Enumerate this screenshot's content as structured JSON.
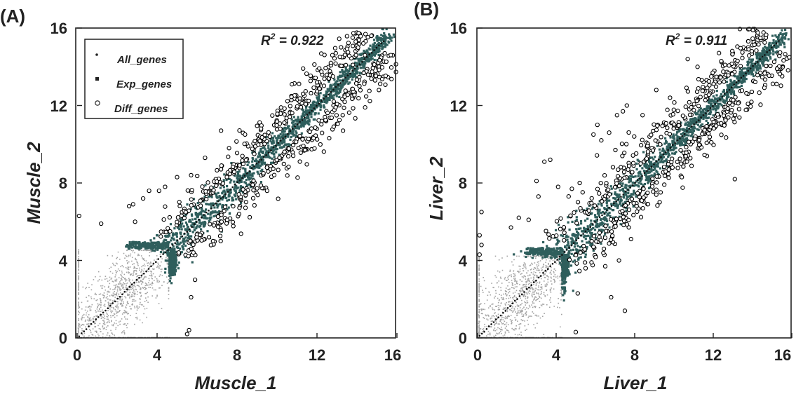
{
  "chart_data": [
    {
      "panel_label": "(A)",
      "type": "scatter",
      "xlabel": "Muscle_1",
      "ylabel": "Muscle_2",
      "xlim": [
        0,
        16
      ],
      "ylim": [
        0,
        16
      ],
      "xticks": [
        "0",
        "4",
        "8",
        "12",
        "16"
      ],
      "yticks": [
        "0",
        "4",
        "8",
        "12",
        "16"
      ],
      "annotation": {
        "prefix": "R",
        "superscript": "2",
        "suffix": " = 0.922",
        "r2": 0.922
      },
      "legend": {
        "position": "top-left",
        "entries": [
          "All_genes",
          "Exp_genes",
          "Diff_genes"
        ]
      },
      "threshold": 4.6,
      "series": [
        {
          "name": "All_genes",
          "marker": "small-dot",
          "color": "#a4a4a4"
        },
        {
          "name": "Exp_genes",
          "marker": "filled-square",
          "color": "#2f5e5c"
        },
        {
          "name": "Diff_genes",
          "marker": "open-circle",
          "color": "#000000",
          "points": [
            [
              2.6,
              6.8
            ],
            [
              2.8,
              6.9
            ],
            [
              3.3,
              7.2
            ],
            [
              3.6,
              7.6
            ],
            [
              4.1,
              7.6
            ],
            [
              4.4,
              7.8
            ],
            [
              5.0,
              8.3
            ],
            [
              5.7,
              8.4
            ],
            [
              6.4,
              9.3
            ],
            [
              7.2,
              10.7
            ],
            [
              7.6,
              9.8
            ],
            [
              8.4,
              10.5
            ],
            [
              9.2,
              10.8
            ],
            [
              10.2,
              11.9
            ],
            [
              11.3,
              12.6
            ],
            [
              12.8,
              13.5
            ],
            [
              14.4,
              14.6
            ],
            [
              15.1,
              12.8
            ],
            [
              13.3,
              10.7
            ],
            [
              11.4,
              9.7
            ],
            [
              9.5,
              7.6
            ],
            [
              8.1,
              6.4
            ],
            [
              7.5,
              6.1
            ],
            [
              6.8,
              5.0
            ],
            [
              5.9,
              3.0
            ],
            [
              5.7,
              2.1
            ],
            [
              5.6,
              0.4
            ],
            [
              5.5,
              0.2
            ],
            [
              2.9,
              6.0
            ],
            [
              0.1,
              6.3
            ],
            [
              1.2,
              5.9
            ],
            [
              12.0,
              13.2
            ],
            [
              13.8,
              14.1
            ]
          ]
        }
      ]
    },
    {
      "panel_label": "(B)",
      "type": "scatter",
      "xlabel": "Liver_1",
      "ylabel": "Liver_2",
      "xlim": [
        0,
        16
      ],
      "ylim": [
        0,
        16
      ],
      "xticks": [
        "0",
        "4",
        "8",
        "12",
        "16"
      ],
      "yticks": [
        "0",
        "4",
        "8",
        "12",
        "16"
      ],
      "annotation": {
        "prefix": "R",
        "superscript": "2",
        "suffix": " = 0.911",
        "r2": 0.911
      },
      "legend": null,
      "threshold": 4.3,
      "series": [
        {
          "name": "All_genes",
          "marker": "small-dot",
          "color": "#a4a4a4"
        },
        {
          "name": "Exp_genes",
          "marker": "filled-square",
          "color": "#2f5e5c"
        },
        {
          "name": "Diff_genes",
          "marker": "open-circle",
          "color": "#000000",
          "points": [
            [
              1.7,
              5.7
            ],
            [
              2.1,
              6.2
            ],
            [
              2.6,
              6.1
            ],
            [
              3.0,
              8.1
            ],
            [
              3.4,
              9.1
            ],
            [
              3.7,
              9.2
            ],
            [
              3.1,
              7.3
            ],
            [
              4.1,
              7.8
            ],
            [
              4.8,
              7.7
            ],
            [
              5.2,
              8.0
            ],
            [
              5.9,
              10.5
            ],
            [
              6.1,
              11.0
            ],
            [
              6.3,
              10.2
            ],
            [
              6.7,
              10.6
            ],
            [
              7.4,
              11.7
            ],
            [
              7.1,
              11.5
            ],
            [
              7.6,
              12.0
            ],
            [
              8.4,
              11.5
            ],
            [
              9.1,
              12.8
            ],
            [
              9.8,
              12.4
            ],
            [
              10.7,
              14.4
            ],
            [
              11.2,
              14.0
            ],
            [
              11.9,
              13.5
            ],
            [
              12.6,
              14.1
            ],
            [
              13.8,
              14.9
            ],
            [
              13.1,
              8.2
            ],
            [
              11.9,
              10.1
            ],
            [
              10.4,
              8.3
            ],
            [
              9.1,
              7.4
            ],
            [
              8.1,
              6.8
            ],
            [
              7.2,
              4.0
            ],
            [
              6.5,
              3.7
            ],
            [
              5.8,
              3.9
            ],
            [
              7.5,
              1.4
            ],
            [
              6.8,
              2.1
            ],
            [
              5.1,
              2.3
            ],
            [
              5.0,
              0.3
            ],
            [
              0.2,
              6.5
            ],
            [
              0.1,
              5.3
            ],
            [
              0.2,
              4.8
            ],
            [
              0.1,
              4.3
            ]
          ]
        }
      ]
    }
  ]
}
